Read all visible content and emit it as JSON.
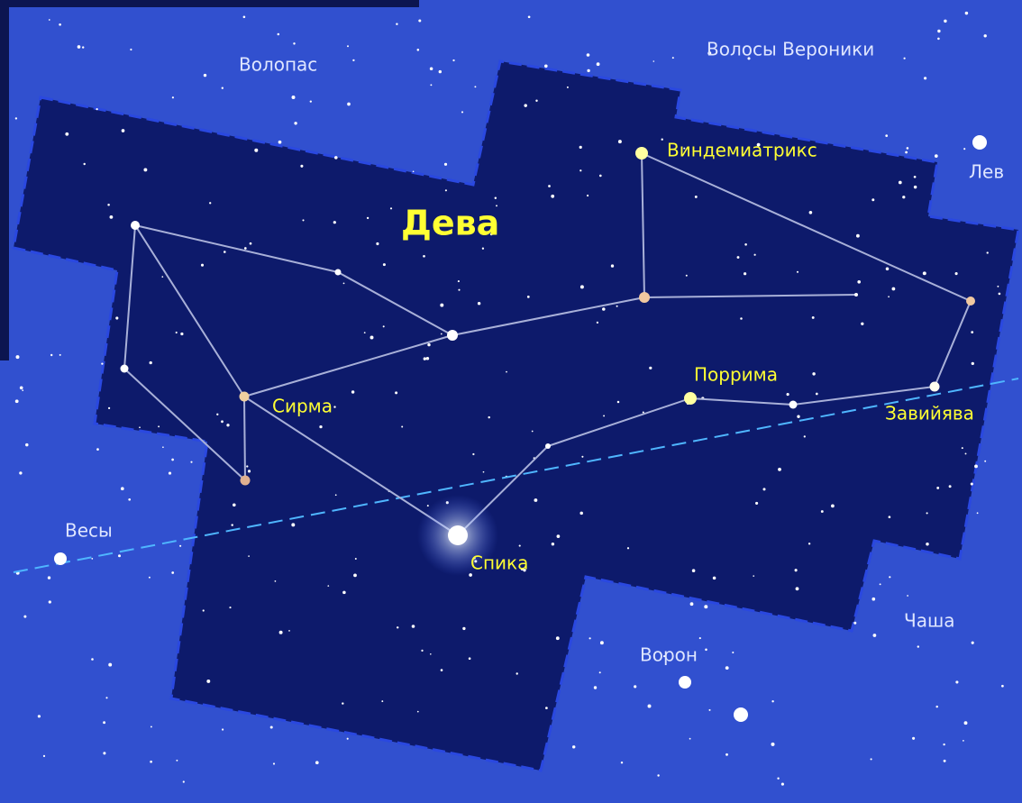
{
  "constellation": {
    "name": "Дева",
    "stars": [
      "Виндемиатрикс",
      "Поррима",
      "Сирма",
      "Спика",
      "Завийява"
    ]
  },
  "neighbors": [
    "Волопас",
    "Волосы Вероники",
    "Лев",
    "Весы",
    "Чаша",
    "Ворон"
  ]
}
